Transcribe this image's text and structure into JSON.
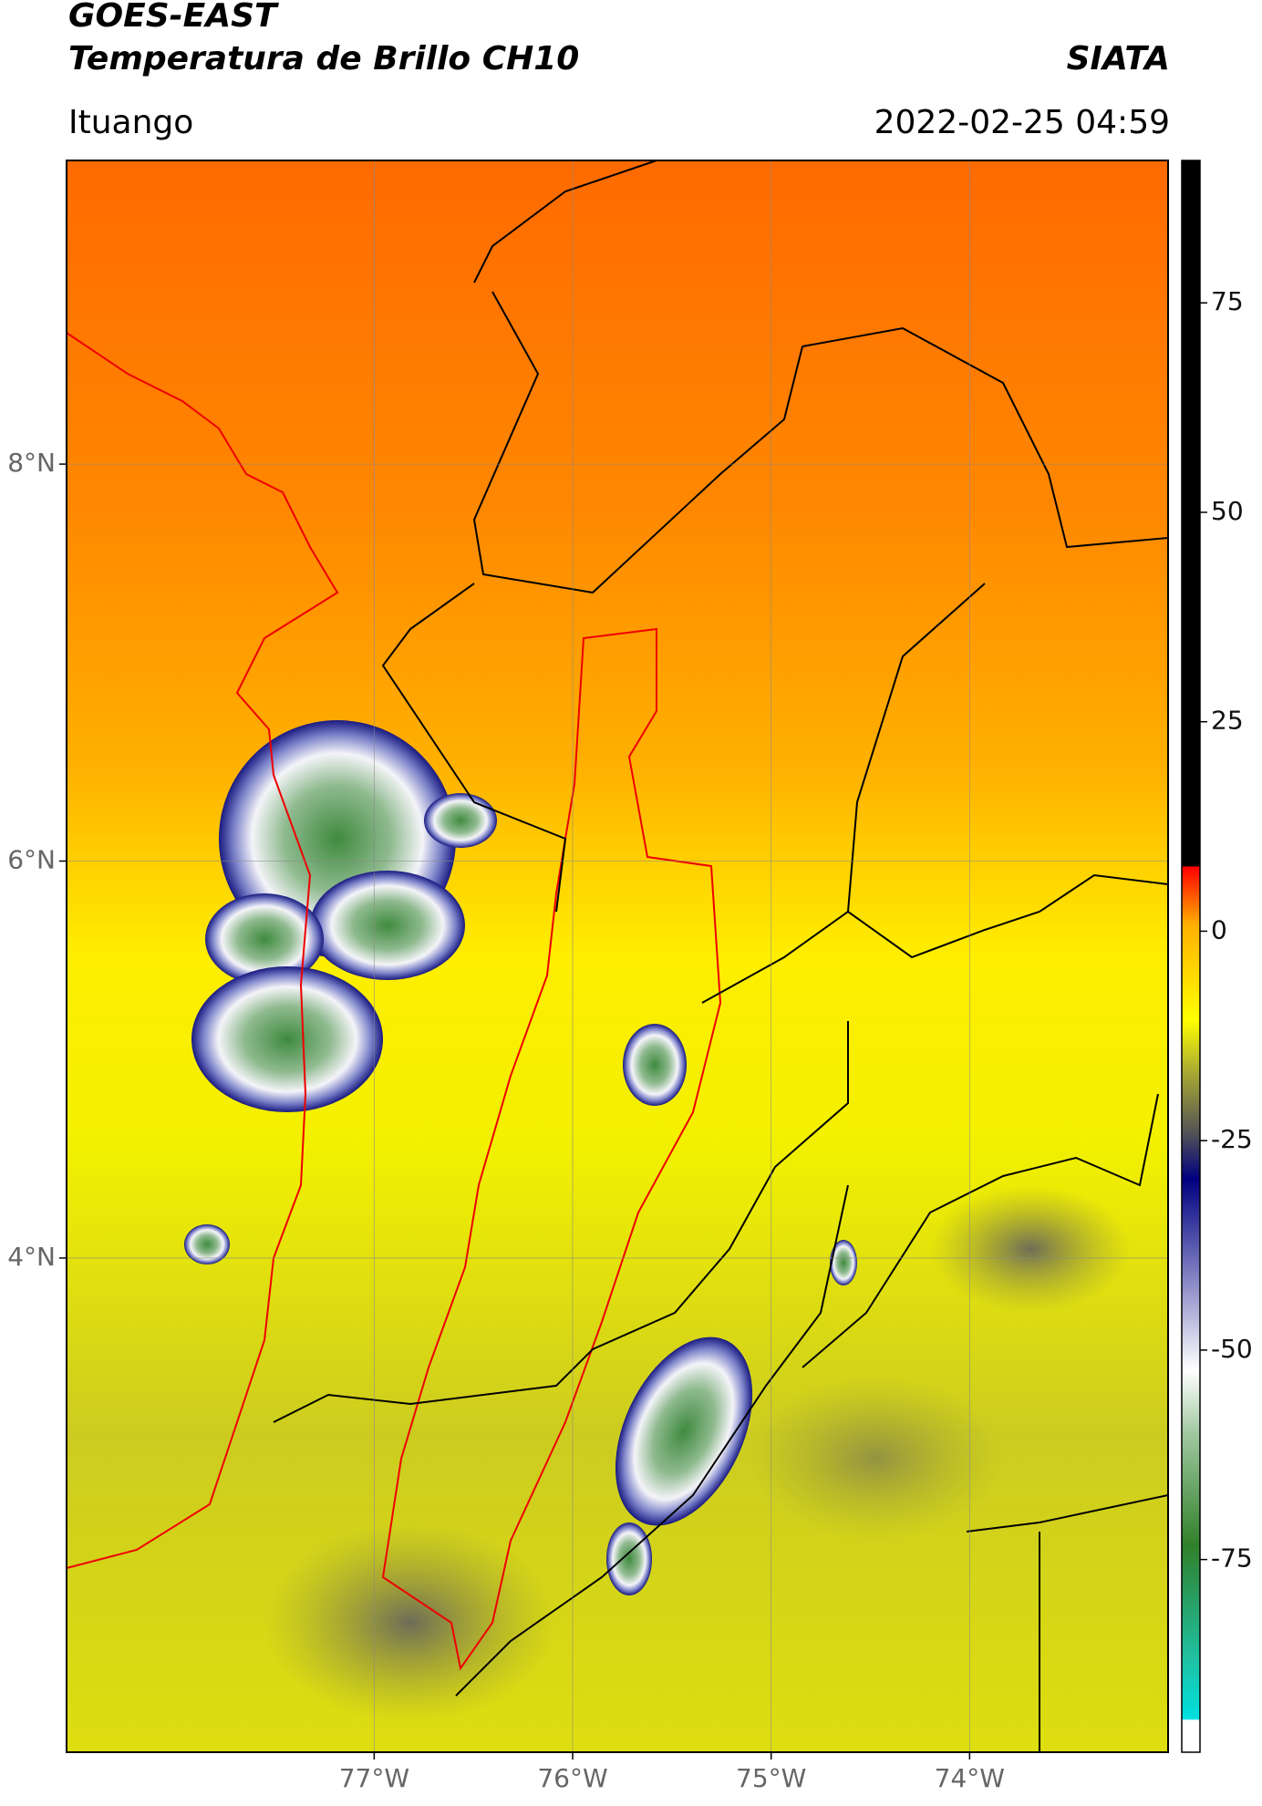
{
  "header": {
    "title": "GOES-EAST",
    "subtitle": "Temperatura de Brillo CH10",
    "source": "SIATA",
    "region": "Ituango",
    "datetime": "2022-02-25 04:59"
  },
  "map": {
    "xlim": [
      -78.55,
      -73.0
    ],
    "ylim": [
      1.51,
      9.53
    ],
    "xticks": [
      {
        "value": -77,
        "label": "77°W"
      },
      {
        "value": -76,
        "label": "76°W"
      },
      {
        "value": -75,
        "label": "75°W"
      },
      {
        "value": -74,
        "label": "74°W"
      }
    ],
    "yticks": [
      {
        "value": 8,
        "label": "8°N"
      },
      {
        "value": 6,
        "label": "6°N"
      },
      {
        "value": 4,
        "label": "4°N"
      }
    ],
    "grid": true
  },
  "colorbar": {
    "lim": [
      -98,
      92
    ],
    "ticks": [
      75,
      50,
      25,
      0,
      -25,
      -50,
      -75
    ]
  }
}
